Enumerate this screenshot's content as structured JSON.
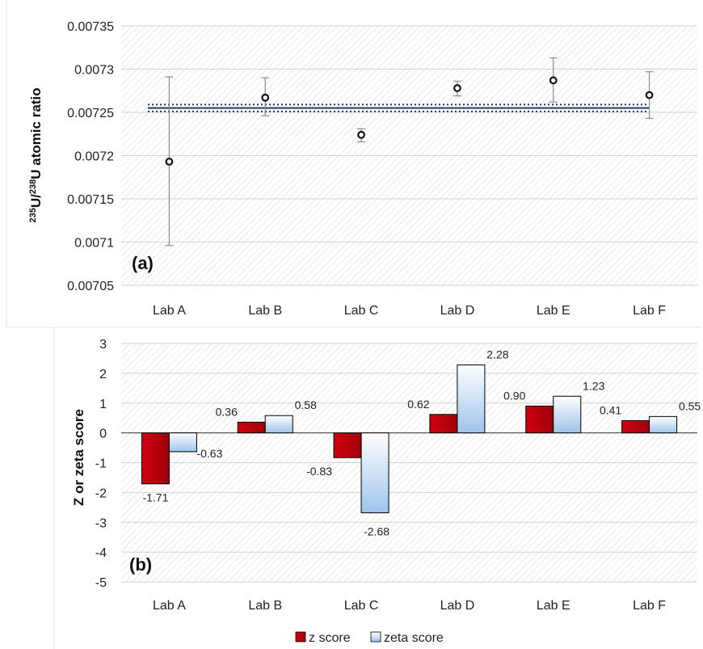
{
  "colors": {
    "z_fill": "#c0000f",
    "zeta_fill": "#a9cdee",
    "reference_line": "#1f3864",
    "error_bar": "#8c8c8c",
    "marker": "#111111"
  },
  "chart_data": [
    {
      "type": "scatter",
      "panel_label": "(a)",
      "ylabel": "235U/238U atomic ratio",
      "ylabel_parts": {
        "sup1": "235",
        "base1": "U/",
        "sup2": "238",
        "base2": "U atomic ratio"
      },
      "ylim": [
        0.00705,
        0.00735
      ],
      "yticks": [
        "0.00735",
        "0.0073",
        "0.00725",
        "0.0072",
        "0.00715",
        "0.0071",
        "0.00705"
      ],
      "ytick_values": [
        0.00735,
        0.0073,
        0.00725,
        0.0072,
        0.00715,
        0.0071,
        0.00705
      ],
      "categories": [
        "Lab A",
        "Lab B",
        "Lab C",
        "Lab D",
        "Lab E",
        "Lab F"
      ],
      "values": [
        0.007193,
        0.007267,
        0.007224,
        0.007278,
        0.007287,
        0.00727
      ],
      "error_low": [
        0.007096,
        0.007246,
        0.007216,
        0.007269,
        0.007262,
        0.007243
      ],
      "error_high": [
        0.007291,
        0.00729,
        0.007231,
        0.007286,
        0.007313,
        0.007297
      ],
      "reference_lines": [
        0.007251,
        0.007255,
        0.007259
      ],
      "grid": true
    },
    {
      "type": "bar",
      "panel_label": "(b)",
      "ylabel": "Z or zeta score",
      "ylim": [
        -5,
        3
      ],
      "yticks": [
        "3",
        "2",
        "1",
        "0",
        "-1",
        "-2",
        "-3",
        "-4",
        "-5"
      ],
      "ytick_values": [
        3,
        2,
        1,
        0,
        -1,
        -2,
        -3,
        -4,
        -5
      ],
      "categories": [
        "Lab A",
        "Lab B",
        "Lab C",
        "Lab D",
        "Lab E",
        "Lab F"
      ],
      "series": [
        {
          "name": "z score",
          "values": [
            -1.71,
            0.36,
            -0.83,
            0.62,
            0.9,
            0.41
          ],
          "labels": [
            "-1.71",
            "0.36",
            "-0.83",
            "0.62",
            "0.90",
            "0.41"
          ]
        },
        {
          "name": "zeta score",
          "values": [
            -0.63,
            0.58,
            -2.68,
            2.28,
            1.23,
            0.55
          ],
          "labels": [
            "-0.63",
            "0.58",
            "-2.68",
            "2.28",
            "1.23",
            "0.55"
          ]
        }
      ],
      "legend_position": "bottom",
      "grid": true
    }
  ]
}
